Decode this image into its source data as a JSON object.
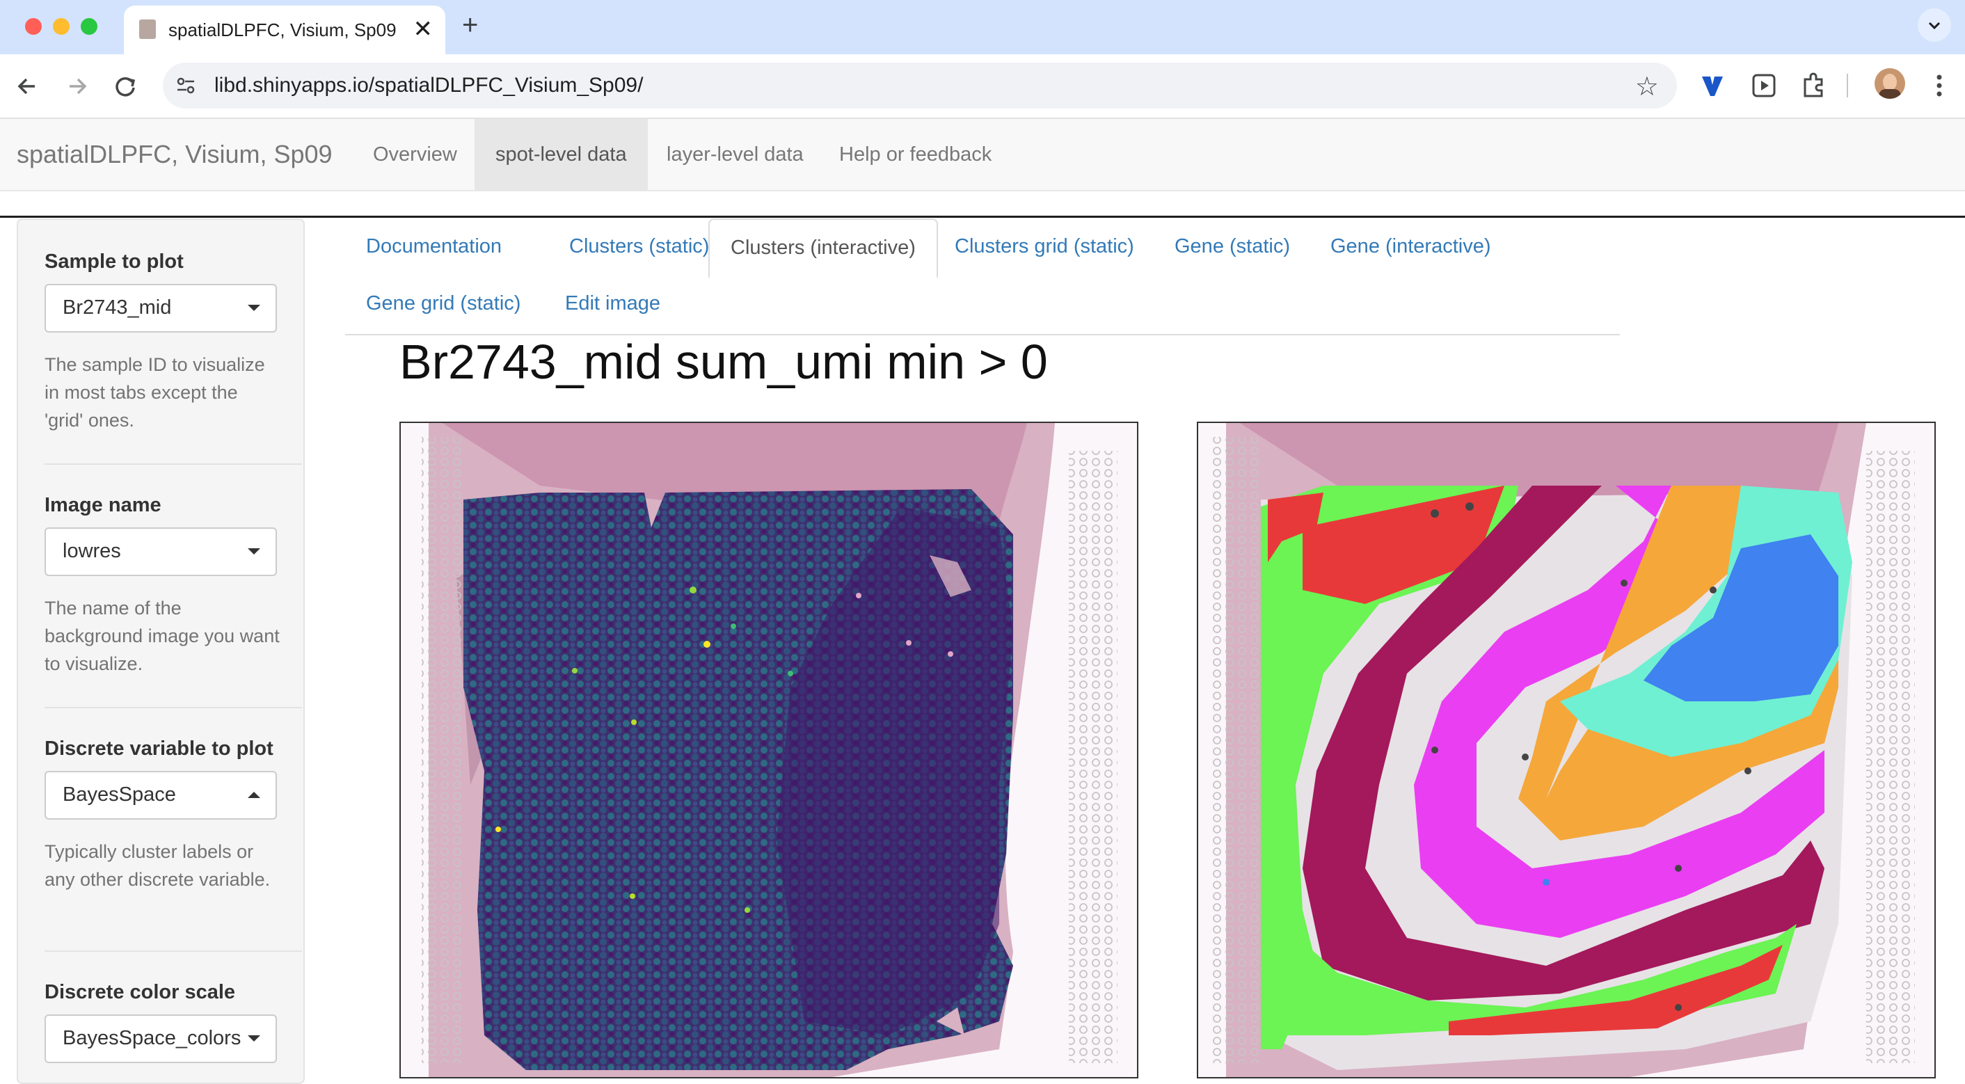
{
  "browser": {
    "tab_title": "spatialDLPFC, Visium, Sp09",
    "tab_close": "✕",
    "new_tab": "+",
    "url": "libd.shinyapps.io/spatialDLPFC_Visium_Sp09/",
    "star": "☆"
  },
  "navbar": {
    "brand": "spatialDLPFC, Visium, Sp09",
    "items": [
      {
        "label": "Overview"
      },
      {
        "label": "spot-level data"
      },
      {
        "label": "layer-level data"
      },
      {
        "label": "Help or feedback"
      }
    ]
  },
  "sidebar": {
    "sample": {
      "label": "Sample to plot",
      "value": "Br2743_mid",
      "help": "The sample ID to visualize in most tabs except the 'grid' ones."
    },
    "image": {
      "label": "Image name",
      "value": "lowres",
      "help": "The name of the background image you want to visualize."
    },
    "discrete": {
      "label": "Discrete variable to plot",
      "value": "BayesSpace",
      "help": "Typically cluster labels or any other discrete variable."
    },
    "color_scale": {
      "label": "Discrete color scale",
      "value": "BayesSpace_colors"
    }
  },
  "subtabs": [
    {
      "label": "Documentation"
    },
    {
      "label": "Clusters (static)"
    },
    {
      "label": "Clusters (interactive)"
    },
    {
      "label": "Clusters grid (static)"
    },
    {
      "label": "Gene (static)"
    },
    {
      "label": "Gene (interactive)"
    },
    {
      "label": "Gene grid (static)"
    },
    {
      "label": "Edit image"
    }
  ],
  "plot": {
    "title": "Br2743_mid sum_umi min > 0"
  },
  "colors": {
    "link": "#337ab7",
    "navbar_bg": "#f8f8f8",
    "tissue": "#c48aa6",
    "viridis_dark": "#3f2b6b",
    "viridis_teal": "#2f6f84",
    "cluster_red": "#e8393a",
    "cluster_green": "#6cf354",
    "cluster_maroon": "#a3195b",
    "cluster_magenta": "#ea3ef2",
    "cluster_orange": "#f5a73a",
    "cluster_cyan": "#6ff0d2",
    "cluster_blue": "#3f82f0"
  }
}
